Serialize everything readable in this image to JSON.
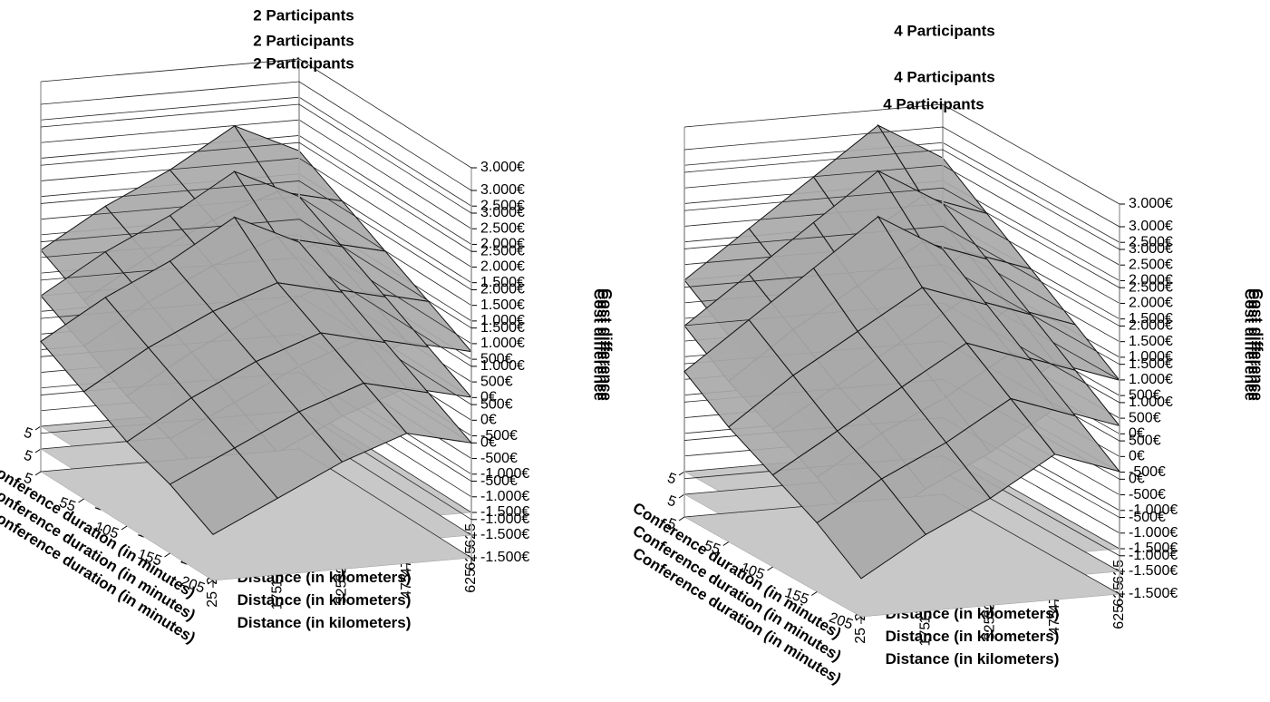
{
  "chart_data": [
    {
      "type": "surface",
      "title": "2 Participants",
      "xlabel": "Conference duration (in minutes)",
      "ylabel": "Distance (in kilometers)",
      "zlabel": "Cost difference",
      "color": "#a9a9a9",
      "floor_color": "#c8c8c8",
      "x": [
        5,
        55,
        105,
        155,
        205
      ],
      "y": [
        25,
        175,
        325,
        475,
        625
      ],
      "z": [
        [
          800,
          1300,
          1700,
          2200,
          1800
        ],
        [
          500,
          1000,
          1400,
          1700,
          1500
        ],
        [
          200,
          700,
          1100,
          1400,
          1200
        ],
        [
          0,
          400,
          800,
          1100,
          900
        ],
        [
          -300,
          100,
          500,
          800,
          600
        ]
      ],
      "zlim": [
        -1500,
        3000
      ],
      "zticks": [
        {
          "value": -1500,
          "label": "-1.500€"
        },
        {
          "value": -1000,
          "label": "-1.000€"
        },
        {
          "value": -500,
          "label": "-500€"
        },
        {
          "value": 0,
          "label": "0€"
        },
        {
          "value": 500,
          "label": "500€"
        },
        {
          "value": 1000,
          "label": "1.000€"
        },
        {
          "value": 1500,
          "label": "1.500€"
        },
        {
          "value": 2000,
          "label": "2.000€"
        },
        {
          "value": 2500,
          "label": "2.500€"
        },
        {
          "value": 3000,
          "label": "3.000€"
        }
      ]
    },
    {
      "type": "surface",
      "title": "2 Participants",
      "xlabel": "Conference duration (in minutes)",
      "ylabel": "Distance (in kilometers)",
      "zlabel": "Cost difference",
      "color": "#a9a9a9",
      "floor_color": "#c8c8c8",
      "x": [
        5,
        55,
        105,
        155,
        205
      ],
      "y": [
        25,
        175,
        325,
        475,
        625
      ],
      "z": [
        [
          500,
          1000,
          1400,
          1900,
          1500
        ],
        [
          200,
          700,
          1100,
          1400,
          1200
        ],
        [
          -100,
          400,
          800,
          1100,
          900
        ],
        [
          -300,
          100,
          500,
          800,
          600
        ],
        [
          -600,
          -200,
          200,
          500,
          300
        ]
      ],
      "zlim": [
        -1500,
        3000
      ],
      "zticks": [
        {
          "value": -1500,
          "label": "-1.500€"
        },
        {
          "value": -1000,
          "label": "-1.000€"
        },
        {
          "value": -500,
          "label": "-500€"
        },
        {
          "value": 0,
          "label": "0€"
        },
        {
          "value": 500,
          "label": "500€"
        },
        {
          "value": 1000,
          "label": "1.000€"
        },
        {
          "value": 1500,
          "label": "1.500€"
        },
        {
          "value": 2000,
          "label": "2.000€"
        },
        {
          "value": 2500,
          "label": "2.500€"
        },
        {
          "value": 3000,
          "label": "3.000€"
        }
      ]
    },
    {
      "type": "surface",
      "title": "2 Participants",
      "xlabel": "Conference duration (in minutes)",
      "ylabel": "Distance (in kilometers)",
      "zlabel": "Cost difference",
      "color": "#a9a9a9",
      "floor_color": "#c8c8c8",
      "x": [
        5,
        55,
        105,
        155,
        205
      ],
      "y": [
        25,
        175,
        325,
        475,
        625
      ],
      "z": [
        [
          200,
          700,
          1100,
          1600,
          1200
        ],
        [
          -100,
          400,
          800,
          1100,
          900
        ],
        [
          -400,
          100,
          500,
          800,
          600
        ],
        [
          -600,
          -200,
          200,
          500,
          300
        ],
        [
          -900,
          -500,
          -100,
          200,
          0
        ]
      ],
      "zlim": [
        -1500,
        3000
      ],
      "zticks": [
        {
          "value": -1500,
          "label": "-1.500€"
        },
        {
          "value": -1000,
          "label": "-1.000€"
        },
        {
          "value": -500,
          "label": "-500€"
        },
        {
          "value": 0,
          "label": "0€"
        },
        {
          "value": 500,
          "label": "500€"
        },
        {
          "value": 1000,
          "label": "1.000€"
        },
        {
          "value": 1500,
          "label": "1.500€"
        },
        {
          "value": 2000,
          "label": "2.000€"
        },
        {
          "value": 2500,
          "label": "2.500€"
        },
        {
          "value": 3000,
          "label": "3.000€"
        }
      ]
    },
    {
      "type": "surface",
      "title": "4 Participants",
      "xlabel": "Conference duration (in minutes)",
      "ylabel": "Distance (in kilometers)",
      "zlabel": "Cost difference",
      "color": "#a9a9a9",
      "floor_color": "#c8c8c8",
      "x": [
        5,
        55,
        105,
        155,
        205
      ],
      "y": [
        25,
        175,
        325,
        475,
        625
      ],
      "z": [
        [
          1000,
          1600,
          2200,
          2800,
          2300
        ],
        [
          600,
          1200,
          1700,
          2200,
          1900
        ],
        [
          300,
          800,
          1300,
          1800,
          1500
        ],
        [
          0,
          500,
          900,
          1400,
          1100
        ],
        [
          -400,
          100,
          500,
          1000,
          700
        ]
      ],
      "zlim": [
        -1500,
        3000
      ],
      "zticks": [
        {
          "value": -1500,
          "label": "-1.500€"
        },
        {
          "value": -1000,
          "label": "-1.000€"
        },
        {
          "value": -500,
          "label": "-500€"
        },
        {
          "value": 0,
          "label": "0€"
        },
        {
          "value": 500,
          "label": "500€"
        },
        {
          "value": 1000,
          "label": "1.000€"
        },
        {
          "value": 1500,
          "label": "1.500€"
        },
        {
          "value": 2000,
          "label": "2.000€"
        },
        {
          "value": 2500,
          "label": "2.500€"
        },
        {
          "value": 3000,
          "label": "3.000€"
        }
      ]
    },
    {
      "type": "surface",
      "title": "4 Participants",
      "xlabel": "Conference duration (in minutes)",
      "ylabel": "Distance (in kilometers)",
      "zlabel": "Cost difference",
      "color": "#a9a9a9",
      "floor_color": "#c8c8c8",
      "x": [
        5,
        55,
        105,
        155,
        205
      ],
      "y": [
        25,
        175,
        325,
        475,
        625
      ],
      "z": [
        [
          700,
          1300,
          1900,
          2500,
          2000
        ],
        [
          300,
          900,
          1400,
          1900,
          1600
        ],
        [
          0,
          500,
          1000,
          1500,
          1200
        ],
        [
          -300,
          200,
          600,
          1100,
          800
        ],
        [
          -700,
          -200,
          200,
          700,
          400
        ]
      ],
      "zlim": [
        -1500,
        3000
      ],
      "zticks": [
        {
          "value": -1500,
          "label": "-1.500€"
        },
        {
          "value": -1000,
          "label": "-1.000€"
        },
        {
          "value": -500,
          "label": "-500€"
        },
        {
          "value": 0,
          "label": "0€"
        },
        {
          "value": 500,
          "label": "500€"
        },
        {
          "value": 1000,
          "label": "1.000€"
        },
        {
          "value": 1500,
          "label": "1.500€"
        },
        {
          "value": 2000,
          "label": "2.000€"
        },
        {
          "value": 2500,
          "label": "2.500€"
        },
        {
          "value": 3000,
          "label": "3.000€"
        }
      ]
    },
    {
      "type": "surface",
      "title": "4 Participants",
      "xlabel": "Conference duration (in minutes)",
      "ylabel": "Distance (in kilometers)",
      "zlabel": "Cost difference",
      "color": "#a9a9a9",
      "floor_color": "#c8c8c8",
      "x": [
        5,
        55,
        105,
        155,
        205
      ],
      "y": [
        25,
        175,
        325,
        475,
        625
      ],
      "z": [
        [
          400,
          1000,
          1600,
          2200,
          1700
        ],
        [
          0,
          600,
          1100,
          1600,
          1300
        ],
        [
          -300,
          200,
          700,
          1200,
          900
        ],
        [
          -600,
          -100,
          300,
          800,
          500
        ],
        [
          -1000,
          -500,
          -100,
          400,
          100
        ]
      ],
      "zlim": [
        -1500,
        3000
      ],
      "zticks": [
        {
          "value": -1500,
          "label": "-1.500€"
        },
        {
          "value": -1000,
          "label": "-1.000€"
        },
        {
          "value": -500,
          "label": "-500€"
        },
        {
          "value": 0,
          "label": "0€"
        },
        {
          "value": 500,
          "label": "500€"
        },
        {
          "value": 1000,
          "label": "1.000€"
        },
        {
          "value": 1500,
          "label": "1.500€"
        },
        {
          "value": 2000,
          "label": "2.000€"
        },
        {
          "value": 2500,
          "label": "2.500€"
        },
        {
          "value": 3000,
          "label": "3.000€"
        }
      ]
    }
  ]
}
